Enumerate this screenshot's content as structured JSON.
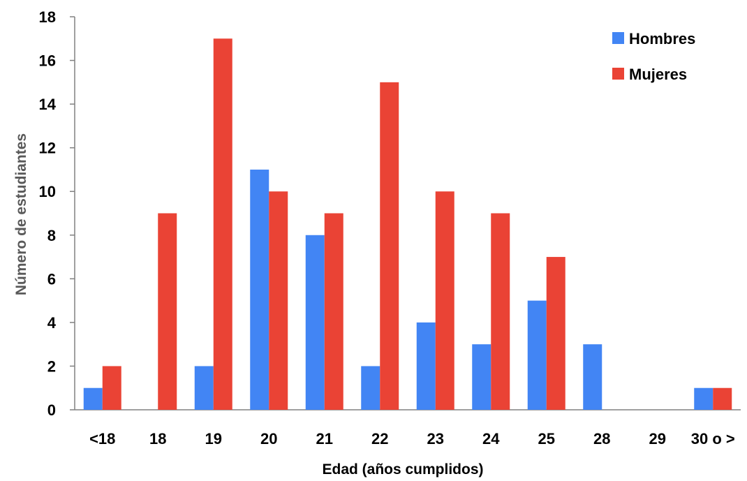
{
  "chart_data": {
    "type": "bar",
    "title": "",
    "xlabel": "Edad (años cumplidos)",
    "ylabel": "Número de estudiantes",
    "ylim": [
      0,
      18
    ],
    "yticks": [
      "0",
      "2",
      "4",
      "6",
      "8",
      "10",
      "12",
      "14",
      "16",
      "18"
    ],
    "grid": false,
    "legend_position": "top-right",
    "categories": [
      "<18",
      "18",
      "19",
      "20",
      "21",
      "22",
      "23",
      "24",
      "25",
      "28",
      "29",
      "30 o >"
    ],
    "series": [
      {
        "name": "Hombres",
        "color": "#4285f4",
        "values": [
          1,
          0,
          2,
          11,
          8,
          2,
          4,
          3,
          5,
          3,
          0,
          1
        ]
      },
      {
        "name": "Mujeres",
        "color": "#ea4335",
        "values": [
          2,
          9,
          17,
          10,
          9,
          15,
          10,
          9,
          7,
          0,
          0,
          1
        ]
      }
    ]
  }
}
